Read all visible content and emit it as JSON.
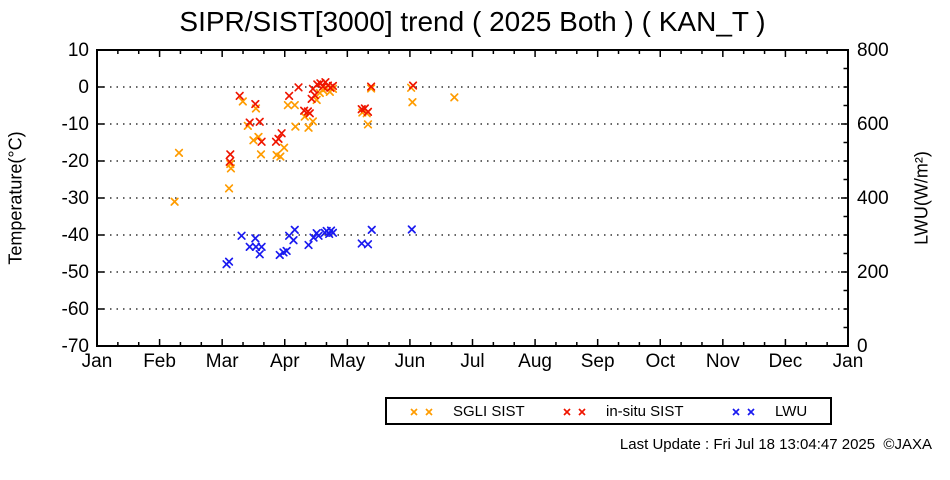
{
  "title": "SIPR/SIST[3000] trend ( 2025 Both ) ( KAN_T )",
  "footer": "Last Update : Fri Jul 18 13:04:47 2025  ©JAXA",
  "colors": {
    "sgli": "#ff9c00",
    "insitu": "#ef1500",
    "lwu": "#1a1af0",
    "axis": "#000000",
    "grid": "#333333"
  },
  "legend": {
    "items": [
      {
        "label": "SGLI SIST",
        "color": "#ff9c00"
      },
      {
        "label": "in-situ SIST",
        "color": "#ef1500"
      },
      {
        "label": "LWU",
        "color": "#1a1af0"
      }
    ]
  },
  "chart_data": {
    "type": "scatter",
    "title": "SIPR/SIST[3000] trend ( 2025 Both ) ( KAN_T )",
    "grid": "horizontal-dotted",
    "legend_position": "bottom",
    "x_axis": {
      "tick_labels": [
        "Jan",
        "Feb",
        "Mar",
        "Apr",
        "May",
        "Jun",
        "Jul",
        "Aug",
        "Sep",
        "Oct",
        "Nov",
        "Dec",
        "Jan"
      ],
      "range_months": [
        0,
        12
      ],
      "minor_ticks_per_month": 2
    },
    "y_left": {
      "label": "Temperature(°C)",
      "ticks": [
        10,
        0,
        -10,
        -20,
        -30,
        -40,
        -50,
        -60,
        -70
      ],
      "range": [
        -70,
        10
      ]
    },
    "y_right": {
      "label": "LWU(W/m²)",
      "ticks": [
        0,
        200,
        400,
        600,
        800
      ],
      "range": [
        0,
        800
      ],
      "minor_step": 50
    },
    "grid_temps": [
      0,
      -10,
      -20,
      -30,
      -40,
      -50,
      -60
    ],
    "series": [
      {
        "name": "SGLI SIST",
        "axis": "left",
        "marker": "x",
        "color": "#ff9c00",
        "points": [
          [
            1.24,
            -31.0
          ],
          [
            1.31,
            -17.8
          ],
          [
            2.11,
            -27.4
          ],
          [
            2.13,
            -20.8
          ],
          [
            2.14,
            -22.0
          ],
          [
            2.33,
            -3.9
          ],
          [
            2.41,
            -10.5
          ],
          [
            2.5,
            -14.4
          ],
          [
            2.54,
            -5.8
          ],
          [
            2.58,
            -13.5
          ],
          [
            2.62,
            -18.2
          ],
          [
            2.87,
            -18.4
          ],
          [
            2.93,
            -18.8
          ],
          [
            2.99,
            -16.4
          ],
          [
            3.05,
            -4.9
          ],
          [
            3.16,
            -4.9
          ],
          [
            3.17,
            -10.7
          ],
          [
            3.32,
            -8.0
          ],
          [
            3.38,
            -11.0
          ],
          [
            3.45,
            -9.3
          ],
          [
            3.51,
            -3.5
          ],
          [
            3.56,
            -1.6
          ],
          [
            3.61,
            -0.8
          ],
          [
            3.66,
            -0.3
          ],
          [
            3.72,
            -1.3
          ],
          [
            3.77,
            -0.5
          ],
          [
            4.24,
            -6.9
          ],
          [
            4.31,
            -7.1
          ],
          [
            4.33,
            -10.1
          ],
          [
            4.38,
            -0.4
          ],
          [
            5.02,
            -0.2
          ],
          [
            5.04,
            -4.1
          ],
          [
            5.71,
            -2.8
          ]
        ]
      },
      {
        "name": "in-situ SIST",
        "axis": "left",
        "marker": "x",
        "color": "#ef1500",
        "points": [
          [
            2.12,
            -20.2
          ],
          [
            2.13,
            -18.2
          ],
          [
            2.28,
            -2.4
          ],
          [
            2.44,
            -9.6
          ],
          [
            2.53,
            -4.6
          ],
          [
            2.6,
            -9.4
          ],
          [
            2.63,
            -14.8
          ],
          [
            2.86,
            -14.8
          ],
          [
            2.9,
            -14.0
          ],
          [
            2.95,
            -12.5
          ],
          [
            3.07,
            -2.4
          ],
          [
            3.22,
            -0.1
          ],
          [
            3.31,
            -6.4
          ],
          [
            3.37,
            -6.6
          ],
          [
            3.4,
            -7.1
          ],
          [
            3.43,
            -3.2
          ],
          [
            3.45,
            -0.5
          ],
          [
            3.48,
            -2.2
          ],
          [
            3.52,
            0.7
          ],
          [
            3.57,
            1.0
          ],
          [
            3.61,
            0.1
          ],
          [
            3.65,
            1.3
          ],
          [
            3.69,
            0.4
          ],
          [
            3.73,
            -0.2
          ],
          [
            3.77,
            0.3
          ],
          [
            4.23,
            -6.0
          ],
          [
            4.28,
            -5.8
          ],
          [
            4.33,
            -6.7
          ],
          [
            4.38,
            0.1
          ],
          [
            5.05,
            0.4
          ]
        ]
      },
      {
        "name": "LWU",
        "axis": "right",
        "marker": "x",
        "color": "#1a1af0",
        "points": [
          [
            2.07,
            221
          ],
          [
            2.11,
            228
          ],
          [
            2.31,
            298
          ],
          [
            2.44,
            268
          ],
          [
            2.53,
            291
          ],
          [
            2.54,
            268
          ],
          [
            2.6,
            248
          ],
          [
            2.63,
            268
          ],
          [
            2.92,
            246
          ],
          [
            2.98,
            253
          ],
          [
            3.03,
            257
          ],
          [
            3.07,
            298
          ],
          [
            3.14,
            286
          ],
          [
            3.16,
            314
          ],
          [
            3.38,
            273
          ],
          [
            3.46,
            293
          ],
          [
            3.51,
            305
          ],
          [
            3.54,
            298
          ],
          [
            3.64,
            306
          ],
          [
            3.67,
            311
          ],
          [
            3.71,
            303
          ],
          [
            3.74,
            312
          ],
          [
            3.77,
            306
          ],
          [
            4.23,
            277
          ],
          [
            4.33,
            275
          ],
          [
            4.39,
            314
          ],
          [
            5.03,
            315
          ]
        ]
      }
    ]
  }
}
